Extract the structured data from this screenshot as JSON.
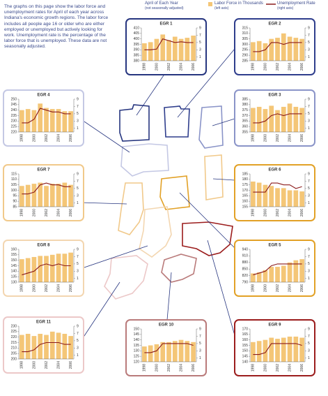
{
  "intro": "The graphs on this page show the labor force and unemployment rates for April of each year across Indiana's economic growth regions. The labor force includes all people age 16 or older who are either employed or unemployed but actively looking for work. Unemployment rate is the percentage of the labor force that is unemployed. These data are not seasonally adjusted.",
  "legend": {
    "note": "April of Each Year",
    "note_sub": "(not seasonally adjusted)",
    "bars_label": "Labor Force in Thousands",
    "bars_sub": "(left axis)",
    "line_label": "Unemployment Rate",
    "line_sub": "(right axis)"
  },
  "chart_data": [
    {
      "type": "bar",
      "title": "EGR 1",
      "border": "#26357f",
      "categories": [
        "1998",
        null,
        "2000",
        null,
        "2002",
        null,
        "2004",
        null,
        "2006"
      ],
      "ylim": [
        380,
        410
      ],
      "yticks": [
        380,
        385,
        390,
        395,
        400,
        405,
        410
      ],
      "y2lim": [
        0,
        9
      ],
      "y2ticks": [
        1,
        3,
        5,
        7,
        9
      ],
      "series": [
        {
          "color": "#f4c677",
          "values": [
            396,
            397,
            400,
            404,
            399,
            402,
            400,
            401,
            403
          ]
        },
        {
          "type": "line",
          "axis": "y2",
          "color": "#8b1a1a",
          "values": [
            3.0,
            3.0,
            3.2,
            6.0,
            5.5,
            5.0,
            5.2,
            5.0,
            5.0
          ]
        }
      ]
    },
    {
      "type": "bar",
      "title": "EGR 2",
      "border": "#2e3d8c",
      "categories": [
        "1998",
        null,
        "2000",
        null,
        "2002",
        null,
        "2004",
        null,
        "2006"
      ],
      "ylim": [
        285,
        315
      ],
      "yticks": [
        285,
        290,
        295,
        300,
        305,
        310,
        315
      ],
      "y2lim": [
        0,
        9
      ],
      "y2ticks": [
        1,
        3,
        5,
        7,
        9
      ],
      "series": [
        {
          "color": "#f4c677",
          "values": [
            302,
            303,
            301,
            305,
            306,
            310,
            307,
            306,
            305
          ]
        },
        {
          "type": "line",
          "axis": "y2",
          "color": "#8b1a1a",
          "values": [
            2.5,
            2.5,
            3.0,
            5.0,
            5.0,
            4.5,
            5.0,
            5.0,
            5.0
          ]
        }
      ]
    },
    {
      "type": "bar",
      "title": "EGR 4",
      "border": "#c4c8e4",
      "categories": [
        "1998",
        null,
        "2000",
        null,
        "2002",
        null,
        "2004",
        null,
        "2006"
      ],
      "ylim": [
        220,
        250
      ],
      "yticks": [
        220,
        225,
        230,
        235,
        240,
        245,
        250
      ],
      "y2lim": [
        0,
        9
      ],
      "y2ticks": [
        1,
        3,
        5,
        7,
        9
      ],
      "series": [
        {
          "color": "#f4c677",
          "values": [
            240,
            241,
            240,
            246,
            242,
            241,
            241,
            239,
            239
          ]
        },
        {
          "type": "line",
          "axis": "y2",
          "color": "#8b1a1a",
          "values": [
            2.5,
            2.5,
            3.5,
            6.5,
            6.0,
            5.5,
            5.5,
            5.0,
            5.0
          ]
        }
      ]
    },
    {
      "type": "bar",
      "title": "EGR 3",
      "border": "#8a94c8",
      "categories": [
        "1998",
        null,
        "2000",
        null,
        "2002",
        null,
        "2004",
        null,
        "2006"
      ],
      "ylim": [
        355,
        385
      ],
      "yticks": [
        355,
        360,
        365,
        370,
        375,
        380,
        385
      ],
      "y2lim": [
        0,
        9
      ],
      "y2ticks": [
        1,
        3,
        5,
        7,
        9
      ],
      "series": [
        {
          "color": "#f4c677",
          "values": [
            377,
            378,
            376,
            379,
            375,
            378,
            381,
            378,
            377
          ]
        },
        {
          "type": "line",
          "axis": "y2",
          "color": "#8b1a1a",
          "values": [
            2.5,
            2.5,
            3.0,
            4.5,
            5.0,
            4.5,
            5.0,
            5.0,
            5.0
          ]
        }
      ]
    },
    {
      "type": "bar",
      "title": "EGR 7",
      "border": "#f1c98a",
      "categories": [
        "1998",
        null,
        "2000",
        null,
        "2002",
        null,
        "2004",
        null,
        "2006"
      ],
      "ylim": [
        85,
        115
      ],
      "yticks": [
        85,
        90,
        95,
        100,
        105,
        110,
        115
      ],
      "y2lim": [
        0,
        9
      ],
      "y2ticks": [
        1,
        3,
        5,
        7,
        9
      ],
      "series": [
        {
          "color": "#f4c677",
          "values": [
            104,
            105,
            106,
            107,
            104,
            106,
            106,
            107,
            105
          ]
        },
        {
          "type": "line",
          "axis": "y2",
          "color": "#8b1a1a",
          "values": [
            3.5,
            3.5,
            4.0,
            6.0,
            6.5,
            6.0,
            6.0,
            5.5,
            5.5
          ]
        }
      ]
    },
    {
      "type": "bar",
      "title": "EGR 6",
      "border": "#e2a126",
      "categories": [
        "1998",
        null,
        "2000",
        null,
        "2002",
        null,
        "2004",
        null,
        "2006"
      ],
      "ylim": [
        155,
        185
      ],
      "yticks": [
        155,
        160,
        165,
        170,
        175,
        180,
        185
      ],
      "y2lim": [
        0,
        9
      ],
      "y2ticks": [
        1,
        3,
        5,
        7,
        9
      ],
      "series": [
        {
          "color": "#f4c677",
          "values": [
            178,
            177,
            175,
            174,
            172,
            172,
            170,
            170,
            169
          ]
        },
        {
          "type": "line",
          "axis": "y2",
          "color": "#8b1a1a",
          "values": [
            4.0,
            4.0,
            4.0,
            6.5,
            6.5,
            6.0,
            6.0,
            5.0,
            5.5
          ]
        }
      ]
    },
    {
      "type": "bar",
      "title": "EGR 8",
      "border": "#f3d6b0",
      "categories": [
        "1998",
        null,
        "2000",
        null,
        "2002",
        null,
        "2004",
        null,
        "2006"
      ],
      "ylim": [
        130,
        160
      ],
      "yticks": [
        130,
        135,
        140,
        145,
        150,
        155,
        160
      ],
      "y2lim": [
        0,
        9
      ],
      "y2ticks": [
        1,
        3,
        5,
        7,
        9
      ],
      "series": [
        {
          "color": "#f4c677",
          "values": [
            151,
            152,
            153,
            154,
            154,
            155,
            156,
            156,
            157
          ]
        },
        {
          "type": "line",
          "axis": "y2",
          "color": "#8b1a1a",
          "values": [
            2.0,
            2.5,
            3.0,
            4.5,
            5.0,
            4.5,
            5.0,
            4.5,
            4.5
          ]
        }
      ]
    },
    {
      "type": "bar",
      "title": "EGR 5",
      "border": "#e2a126",
      "categories": [
        "1998",
        null,
        "2000",
        null,
        "2002",
        null,
        "2004",
        null,
        "2006"
      ],
      "ylim": [
        790,
        940
      ],
      "yticks": [
        790,
        820,
        850,
        880,
        910,
        940
      ],
      "y2lim": [
        0,
        9
      ],
      "y2ticks": [
        1,
        3,
        5,
        7,
        9
      ],
      "series": [
        {
          "color": "#f4c677",
          "values": [
            830,
            835,
            845,
            860,
            860,
            865,
            880,
            890,
            895
          ]
        },
        {
          "type": "line",
          "axis": "y2",
          "color": "#8b1a1a",
          "values": [
            2.0,
            2.5,
            3.0,
            4.5,
            5.0,
            5.0,
            5.0,
            5.0,
            5.0
          ]
        }
      ]
    },
    {
      "type": "bar",
      "title": "EGR 11",
      "border": "#ecc8c8",
      "categories": [
        "1998",
        null,
        "2000",
        null,
        "2002",
        null,
        "2004",
        null,
        "2006"
      ],
      "ylim": [
        200,
        230
      ],
      "yticks": [
        200,
        205,
        210,
        215,
        220,
        225,
        230
      ],
      "y2lim": [
        0,
        9
      ],
      "y2ticks": [
        1,
        3,
        5,
        7,
        9
      ],
      "series": [
        {
          "color": "#f4c677",
          "values": [
            222,
            223,
            221,
            223,
            222,
            225,
            224,
            223,
            221
          ]
        },
        {
          "type": "line",
          "axis": "y2",
          "color": "#8b1a1a",
          "values": [
            2.0,
            2.0,
            2.5,
            4.0,
            4.5,
            4.5,
            4.5,
            4.0,
            4.0
          ]
        }
      ]
    },
    {
      "type": "bar",
      "title": "EGR 10",
      "border": "#b97a7a",
      "categories": [
        "1998",
        null,
        "2000",
        null,
        "2002",
        null,
        "2004",
        null,
        "2006"
      ],
      "ylim": [
        120,
        150
      ],
      "yticks": [
        120,
        125,
        130,
        135,
        140,
        145,
        150
      ],
      "y2lim": [
        0,
        9
      ],
      "y2ticks": [
        1,
        3,
        5,
        7,
        9
      ],
      "series": [
        {
          "color": "#f4c677",
          "values": [
            134,
            135,
            136,
            138,
            138,
            139,
            140,
            139,
            138
          ]
        },
        {
          "type": "line",
          "axis": "y2",
          "color": "#8b1a1a",
          "values": [
            2.5,
            2.5,
            3.0,
            5.0,
            5.0,
            5.0,
            5.0,
            5.0,
            4.5
          ]
        }
      ]
    },
    {
      "type": "bar",
      "title": "EGR 9",
      "border": "#9b1c1c",
      "categories": [
        "1998",
        null,
        "2000",
        null,
        "2002",
        null,
        "2004",
        null,
        "2006"
      ],
      "ylim": [
        140,
        170
      ],
      "yticks": [
        140,
        145,
        150,
        155,
        160,
        165,
        170
      ],
      "y2lim": [
        0,
        9
      ],
      "y2ticks": [
        1,
        3,
        5,
        7,
        9
      ],
      "series": [
        {
          "color": "#f4c677",
          "values": [
            158,
            159,
            160,
            162,
            161,
            162,
            163,
            163,
            162
          ]
        },
        {
          "type": "line",
          "axis": "y2",
          "color": "#8b1a1a",
          "values": [
            2.0,
            2.0,
            2.5,
            5.0,
            5.0,
            5.0,
            5.0,
            5.0,
            4.5
          ]
        }
      ]
    }
  ]
}
